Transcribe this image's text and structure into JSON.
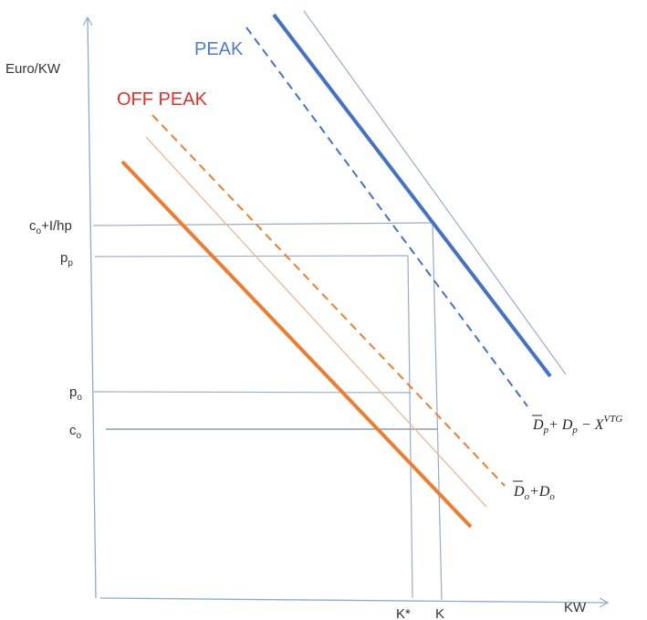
{
  "axes": {
    "y_label": "Euro/KW",
    "x_label": "KW"
  },
  "y_ticks": {
    "co_lhp": {
      "main": "c",
      "sub": "o",
      "rest": "+I/hp"
    },
    "pp": {
      "main": "p",
      "sub": "p"
    },
    "po": {
      "main": "p",
      "sub": "o"
    },
    "co": {
      "main": "c",
      "sub": "o"
    }
  },
  "x_ticks": {
    "k_star": "K*",
    "k": "K"
  },
  "curve_titles": {
    "peak": "PEAK",
    "off_peak": "OFF PEAK"
  },
  "curve_labels": {
    "peak": {
      "d1": "D",
      "s1": "p",
      "plus": "+ ",
      "d2": "D",
      "s2": "p",
      "minus": " − X",
      "sup": "VTG"
    },
    "off_peak": {
      "d1": "D",
      "s1": "o",
      "plus": "+",
      "d2": "D",
      "s2": "o"
    }
  },
  "colors": {
    "axis": "#8fa8cc",
    "peak": "#4472c4",
    "peak_thin": "#9fb0cf",
    "off_peak": "#ed7d31",
    "off_peak_thin": "#e9b898",
    "peak_title": "#4f7ec2",
    "off_peak_title": "#e0302a",
    "guide": "#9aabc8",
    "guide_dark": "#7a8a9e"
  }
}
